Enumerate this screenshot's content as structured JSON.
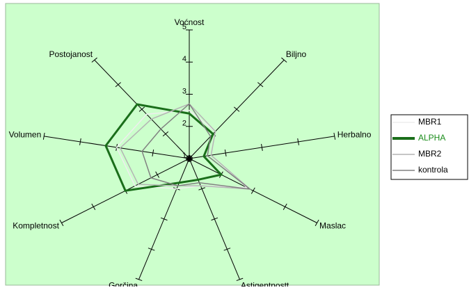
{
  "chart_data": {
    "type": "radar",
    "categories": [
      "Voćnost",
      "Biljno",
      "Herbalno",
      "Maslac",
      "Astigentnostt",
      "Gorčina",
      "Kompletnost",
      "Volumen",
      "Postojanost"
    ],
    "series": [
      {
        "name": "MBR1",
        "color": "#eeeeee",
        "values": [
          2.5,
          2.1,
          1.6,
          2.8,
          1.9,
          2.0,
          2.7,
          3.0,
          2.8
        ]
      },
      {
        "name": "ALPHA",
        "color": "#1a6e1a",
        "text_color": "#1a8c1a",
        "values": [
          2.4,
          2.0,
          1.4,
          2.0,
          1.7,
          1.8,
          3.0,
          3.3,
          3.2
        ]
      },
      {
        "name": "MBR2",
        "color": "#b4b4b4",
        "values": [
          2.7,
          2.1,
          1.6,
          2.9,
          1.9,
          1.9,
          2.6,
          2.9,
          2.6
        ]
      },
      {
        "name": "kontrola",
        "color": "#808080",
        "values": [
          2.7,
          1.9,
          1.5,
          2.9,
          1.8,
          1.9,
          2.2,
          2.3,
          2.2
        ]
      }
    ],
    "ylim": [
      1,
      5
    ],
    "yticks": [
      1,
      2,
      3,
      4,
      5
    ],
    "legend": "right",
    "background": "#ccffcc"
  }
}
